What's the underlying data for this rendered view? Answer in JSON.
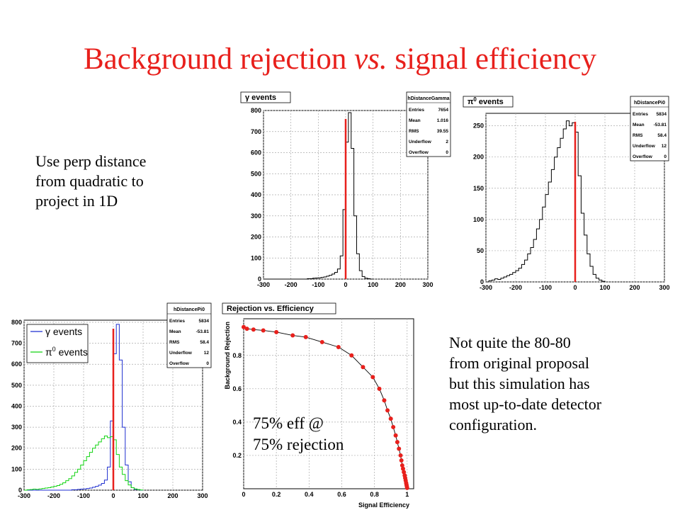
{
  "title": {
    "main": "Background rejection",
    "italic": "vs.",
    "rest": "signal efficiency"
  },
  "left_note": [
    "Use perp distance",
    "from quadratic to",
    "project in 1D"
  ],
  "right_note": [
    "Not quite the 80-80",
    "from original proposal",
    "but this simulation has",
    "most up-to-date detector",
    "configuration."
  ],
  "overlay_note": [
    "75% eff @",
    "75% rejection"
  ],
  "colors": {
    "title": "#e8201c",
    "cut_line": "#e8201c",
    "gamma": "#1f2fd0",
    "pi0": "#12d412",
    "efficiency_points": "#e8201c"
  },
  "chart_data": [
    {
      "type": "histogram",
      "title": "γ events",
      "stats": {
        "name": "hDistanceGamma",
        "rows": [
          [
            "Entries",
            "7654"
          ],
          [
            "Mean",
            "1.016"
          ],
          [
            "RMS",
            "39.55"
          ],
          [
            "Underflow",
            "2"
          ],
          [
            "Overflow",
            "0"
          ]
        ]
      },
      "xlim": [
        -300,
        300
      ],
      "ylim": [
        0,
        800
      ],
      "xticks": [
        -300,
        -200,
        -100,
        0,
        100,
        200,
        300
      ],
      "yticks": [
        0,
        100,
        200,
        300,
        400,
        500,
        600,
        700,
        800
      ],
      "cut": 0,
      "series": [
        {
          "name": "γ events",
          "bin_width": 10,
          "x": [
            -300,
            -290,
            -280,
            -270,
            -260,
            -250,
            -240,
            -230,
            -220,
            -210,
            -200,
            -190,
            -180,
            -170,
            -160,
            -150,
            -140,
            -130,
            -120,
            -110,
            -100,
            -90,
            -80,
            -70,
            -60,
            -50,
            -40,
            -30,
            -20,
            -10,
            0,
            10,
            20,
            30,
            40,
            50,
            60,
            70,
            80,
            90
          ],
          "y": [
            0,
            0,
            0,
            0,
            0,
            0,
            0,
            0,
            0,
            0,
            0,
            0,
            0,
            0,
            0,
            0,
            2,
            2,
            4,
            5,
            6,
            8,
            10,
            14,
            18,
            24,
            32,
            48,
            110,
            330,
            650,
            790,
            620,
            300,
            120,
            40,
            12,
            4,
            2,
            0
          ]
        }
      ]
    },
    {
      "type": "histogram",
      "title": "π0 events",
      "stats": {
        "name": "hDistancePi0",
        "rows": [
          [
            "Entries",
            "5834"
          ],
          [
            "Mean",
            "-53.81"
          ],
          [
            "RMS",
            "58.4"
          ],
          [
            "Underflow",
            "12"
          ],
          [
            "Overflow",
            "0"
          ]
        ]
      },
      "xlim": [
        -300,
        300
      ],
      "ylim": [
        0,
        270
      ],
      "xticks": [
        -300,
        -200,
        -100,
        0,
        100,
        200,
        300
      ],
      "yticks": [
        0,
        50,
        100,
        150,
        200,
        250
      ],
      "cut": 0,
      "series": [
        {
          "name": "π0 events",
          "bin_width": 10,
          "x": [
            -300,
            -290,
            -280,
            -270,
            -260,
            -250,
            -240,
            -230,
            -220,
            -210,
            -200,
            -190,
            -180,
            -170,
            -160,
            -150,
            -140,
            -130,
            -120,
            -110,
            -100,
            -90,
            -80,
            -70,
            -60,
            -50,
            -40,
            -30,
            -20,
            -10,
            0,
            10,
            20,
            30,
            40,
            50,
            60,
            70,
            80,
            90
          ],
          "y": [
            0,
            2,
            3,
            5,
            4,
            6,
            8,
            10,
            12,
            15,
            18,
            22,
            28,
            35,
            45,
            55,
            68,
            85,
            100,
            120,
            140,
            160,
            180,
            200,
            215,
            230,
            245,
            258,
            250,
            255,
            240,
            170,
            110,
            75,
            45,
            25,
            12,
            6,
            3,
            1
          ]
        }
      ]
    },
    {
      "type": "histogram",
      "title": "",
      "legend": [
        "γ events",
        "π0 events"
      ],
      "legend_position": "top-left",
      "stats": {
        "name": "hDistancePi0",
        "rows": [
          [
            "Entries",
            "5834"
          ],
          [
            "Mean",
            "-53.81"
          ],
          [
            "RMS",
            "58.4"
          ],
          [
            "Underflow",
            "12"
          ],
          [
            "Overflow",
            "0"
          ]
        ]
      },
      "xlim": [
        -300,
        300
      ],
      "ylim": [
        0,
        810
      ],
      "xticks": [
        -300,
        -200,
        -100,
        0,
        100,
        200,
        300
      ],
      "yticks": [
        0,
        100,
        200,
        300,
        400,
        500,
        600,
        700,
        800
      ],
      "cut": 0,
      "series": [
        {
          "name": "γ events",
          "bin_width": 10,
          "x": [
            -300,
            -290,
            -280,
            -270,
            -260,
            -250,
            -240,
            -230,
            -220,
            -210,
            -200,
            -190,
            -180,
            -170,
            -160,
            -150,
            -140,
            -130,
            -120,
            -110,
            -100,
            -90,
            -80,
            -70,
            -60,
            -50,
            -40,
            -30,
            -20,
            -10,
            0,
            10,
            20,
            30,
            40,
            50,
            60,
            70,
            80,
            90
          ],
          "y": [
            0,
            0,
            0,
            0,
            0,
            0,
            0,
            0,
            0,
            0,
            0,
            0,
            0,
            0,
            0,
            0,
            2,
            2,
            4,
            5,
            6,
            8,
            10,
            14,
            18,
            24,
            32,
            48,
            110,
            330,
            650,
            790,
            620,
            300,
            120,
            40,
            12,
            4,
            2,
            0
          ]
        },
        {
          "name": "π0 events",
          "bin_width": 10,
          "x": [
            -300,
            -290,
            -280,
            -270,
            -260,
            -250,
            -240,
            -230,
            -220,
            -210,
            -200,
            -190,
            -180,
            -170,
            -160,
            -150,
            -140,
            -130,
            -120,
            -110,
            -100,
            -90,
            -80,
            -70,
            -60,
            -50,
            -40,
            -30,
            -20,
            -10,
            0,
            10,
            20,
            30,
            40,
            50,
            60,
            70,
            80,
            90
          ],
          "y": [
            0,
            2,
            3,
            5,
            4,
            6,
            8,
            10,
            12,
            15,
            18,
            22,
            28,
            35,
            45,
            55,
            68,
            85,
            100,
            120,
            140,
            160,
            180,
            200,
            215,
            230,
            245,
            258,
            250,
            255,
            240,
            170,
            110,
            75,
            45,
            25,
            12,
            6,
            3,
            1
          ]
        }
      ]
    },
    {
      "type": "scatter",
      "title": "Rejection vs. Efficiency",
      "xlabel": "Signal Efficiency",
      "ylabel": "Background Rejection",
      "xlim": [
        0,
        1.04
      ],
      "ylim": [
        0,
        1.02
      ],
      "xticks": [
        0,
        0.2,
        0.4,
        0.6,
        0.8,
        1
      ],
      "yticks": [
        0.2,
        0.4,
        0.6,
        0.8
      ],
      "series": [
        {
          "name": "",
          "fit_curve": true,
          "x": [
            0.0,
            0.02,
            0.06,
            0.12,
            0.2,
            0.3,
            0.38,
            0.48,
            0.58,
            0.66,
            0.73,
            0.79,
            0.83,
            0.86,
            0.88,
            0.9,
            0.915,
            0.93,
            0.94,
            0.95,
            0.96,
            0.965,
            0.97,
            0.975,
            0.98,
            0.985,
            0.988,
            0.991,
            0.994,
            0.996,
            0.998,
            1.0
          ],
          "y": [
            0.97,
            0.96,
            0.955,
            0.95,
            0.94,
            0.92,
            0.91,
            0.88,
            0.85,
            0.8,
            0.73,
            0.67,
            0.6,
            0.53,
            0.47,
            0.42,
            0.37,
            0.32,
            0.28,
            0.24,
            0.2,
            0.17,
            0.14,
            0.12,
            0.1,
            0.08,
            0.065,
            0.05,
            0.035,
            0.025,
            0.015,
            0.005
          ]
        }
      ]
    }
  ]
}
